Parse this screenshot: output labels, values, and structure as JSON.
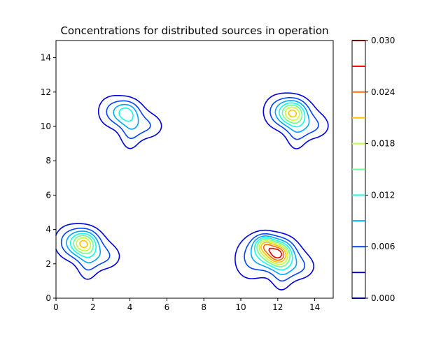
{
  "chart_data": {
    "type": "contour",
    "title": "Concentrations for distributed sources in operation",
    "xlabel": "",
    "ylabel": "",
    "xlim": [
      0,
      15
    ],
    "ylim": [
      0,
      15
    ],
    "x_ticks": [
      "0",
      "2",
      "4",
      "6",
      "8",
      "10",
      "12",
      "14"
    ],
    "y_ticks": [
      "0",
      "2",
      "4",
      "6",
      "8",
      "10",
      "12",
      "14"
    ],
    "colormap": "jet",
    "levels": [
      0.0,
      0.003,
      0.006,
      0.009,
      0.012,
      0.015,
      0.018,
      0.021,
      0.024,
      0.027,
      0.03
    ],
    "level_colors": [
      "#00007f",
      "#0000dd",
      "#0044ff",
      "#00a4ff",
      "#13ffe3",
      "#6dff8a",
      "#c6ff30",
      "#ffc400",
      "#ff6a00",
      "#dd0000",
      "#7f0000"
    ],
    "colorbar_ticks": [
      "0.000",
      "0.006",
      "0.012",
      "0.018",
      "0.024",
      "0.030"
    ],
    "sources": [
      {
        "x": 1.5,
        "y": 3.2,
        "peak": 0.022
      },
      {
        "x": 3.8,
        "y": 10.8,
        "peak": 0.013
      },
      {
        "x": 12.8,
        "y": 10.8,
        "peak": 0.022
      },
      {
        "x": 12.0,
        "y": 2.6,
        "peak": 0.029
      }
    ]
  }
}
